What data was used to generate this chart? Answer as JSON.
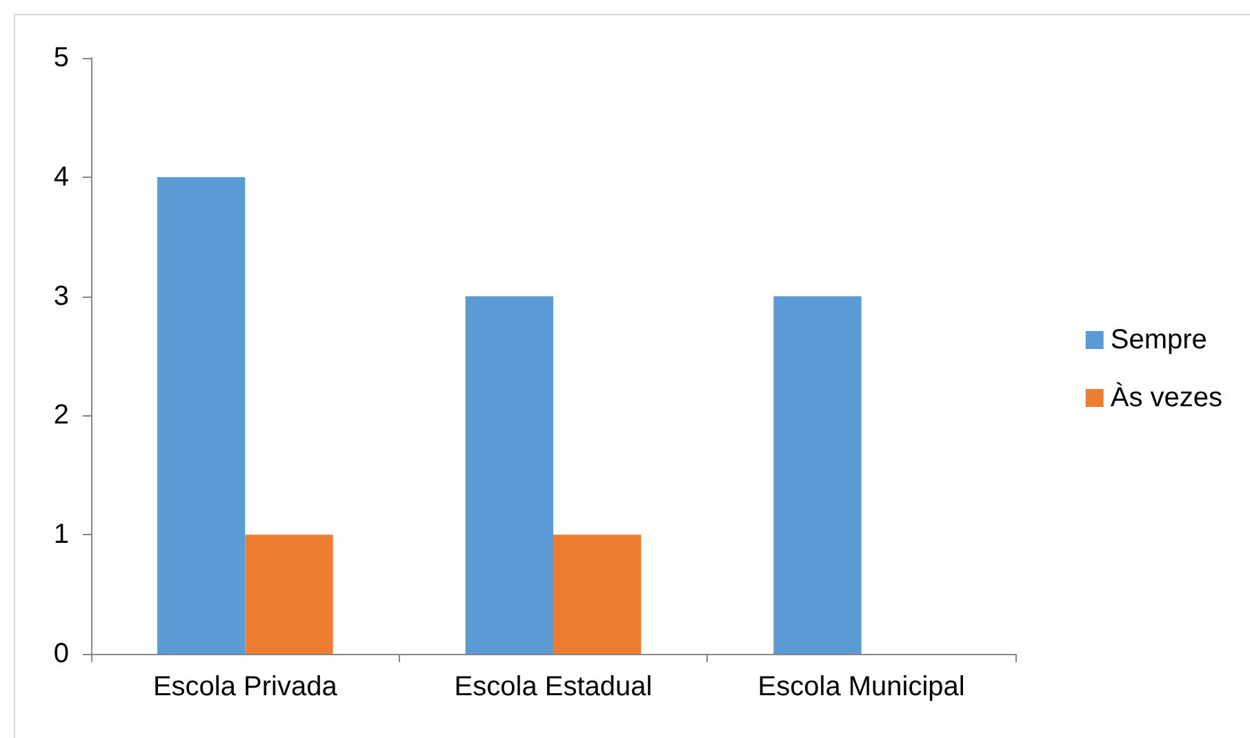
{
  "chart_data": {
    "type": "bar",
    "categories": [
      "Escola Privada",
      "Escola Estadual",
      "Escola Municipal"
    ],
    "series": [
      {
        "name": "Sempre",
        "color": "#5b9bd5",
        "values": [
          4,
          3,
          3
        ]
      },
      {
        "name": "Às vezes",
        "color": "#ed7d31",
        "values": [
          1,
          1,
          0
        ]
      }
    ],
    "ylim": [
      0,
      5
    ],
    "yticks": [
      0,
      1,
      2,
      3,
      4,
      5
    ],
    "grid": false,
    "legend": "right"
  }
}
